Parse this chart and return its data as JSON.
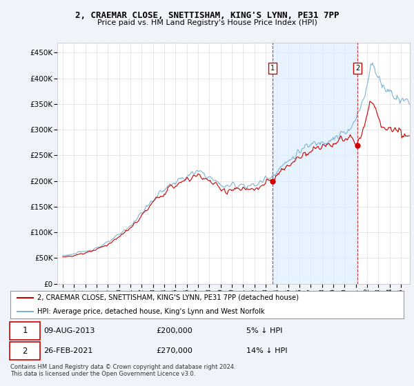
{
  "title": "2, CRAEMAR CLOSE, SNETTISHAM, KING'S LYNN, PE31 7PP",
  "subtitle": "Price paid vs. HM Land Registry's House Price Index (HPI)",
  "legend_line1": "2, CRAEMAR CLOSE, SNETTISHAM, KING'S LYNN, PE31 7PP (detached house)",
  "legend_line2": "HPI: Average price, detached house, King's Lynn and West Norfolk",
  "footer": "Contains HM Land Registry data © Crown copyright and database right 2024.\nThis data is licensed under the Open Government Licence v3.0.",
  "transaction1_date": "09-AUG-2013",
  "transaction1_price": "£200,000",
  "transaction1_note": "5% ↓ HPI",
  "transaction2_date": "26-FEB-2021",
  "transaction2_price": "£270,000",
  "transaction2_note": "14% ↓ HPI",
  "hpi_color": "#7ab3d4",
  "price_color": "#cc0000",
  "shade_color": "#ddeeff",
  "marker1_year": 2013.6,
  "marker1_y": 200000,
  "marker2_year": 2021.15,
  "marker2_y": 270000,
  "vline1_x": 2013.6,
  "vline2_x": 2021.15,
  "ylim": [
    0,
    470000
  ],
  "xlim_start": 1994.5,
  "xlim_end": 2025.8,
  "yticks": [
    0,
    50000,
    100000,
    150000,
    200000,
    250000,
    300000,
    350000,
    400000,
    450000
  ],
  "ytick_labels": [
    "£0",
    "£50K",
    "£100K",
    "£150K",
    "£200K",
    "£250K",
    "£300K",
    "£350K",
    "£400K",
    "£450K"
  ],
  "xticks": [
    1995,
    1996,
    1997,
    1998,
    1999,
    2000,
    2001,
    2002,
    2003,
    2004,
    2005,
    2006,
    2007,
    2008,
    2009,
    2010,
    2011,
    2012,
    2013,
    2014,
    2015,
    2016,
    2017,
    2018,
    2019,
    2020,
    2021,
    2022,
    2023,
    2024,
    2025
  ],
  "background_color": "#f0f4fa",
  "plot_bg_color": "#ffffff",
  "grid_color": "#dddddd"
}
